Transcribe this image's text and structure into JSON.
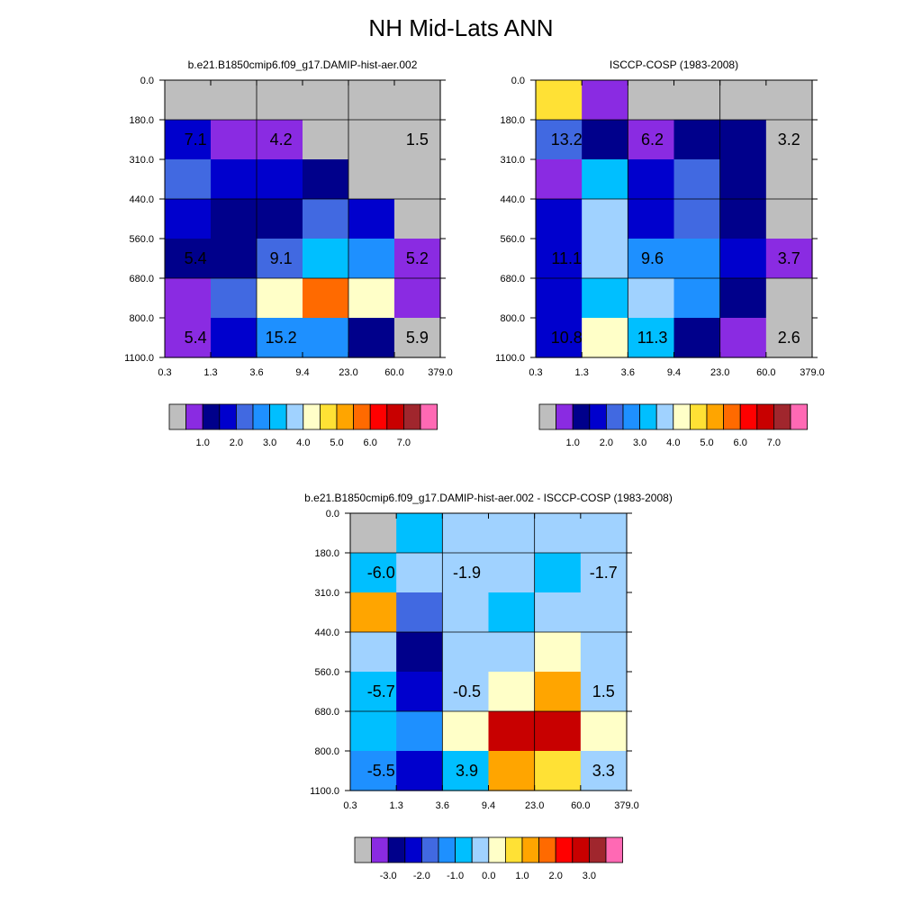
{
  "title": "NH Mid-Lats ANN",
  "chart_data": [
    {
      "type": "heatmap",
      "title": "b.e21.B1850cmip6.f09_g17.DAMIP-hist-aer.002",
      "x_ticks": [
        "0.3",
        "1.3",
        "3.6",
        "9.4",
        "23.0",
        "60.0",
        "379.0"
      ],
      "y_ticks": [
        "0.0",
        "180.0",
        "310.0",
        "440.0",
        "560.0",
        "680.0",
        "800.0",
        "1100.0"
      ],
      "cells": [
        [
          "#bebebe",
          "#bebebe",
          "#bebebe",
          "#bebebe",
          "#bebebe",
          "#bebebe"
        ],
        [
          "#0000cd",
          "#8a2be2",
          "#8a2be2",
          "#bebebe",
          "#bebebe",
          "#bebebe"
        ],
        [
          "#4169e1",
          "#0000cd",
          "#0000cd",
          "#00008b",
          "#bebebe",
          "#bebebe"
        ],
        [
          "#0000cd",
          "#00008b",
          "#00008b",
          "#4169e1",
          "#0000cd",
          "#bebebe"
        ],
        [
          "#00008b",
          "#00008b",
          "#4169e1",
          "#00bfff",
          "#1e90ff",
          "#8a2be2"
        ],
        [
          "#8a2be2",
          "#4169e1",
          "#ffffc8",
          "#ff6a00",
          "#ffffc8",
          "#8a2be2"
        ],
        [
          "#8a2be2",
          "#0000cd",
          "#1e90ff",
          "#1e90ff",
          "#00008b",
          "#bebebe"
        ]
      ],
      "labels": [
        {
          "text": "7.1",
          "x": 0.8,
          "y": 245
        },
        {
          "text": "4.2",
          "x": 6.0,
          "y": 245
        },
        {
          "text": "1.5",
          "x": 150,
          "y": 245
        },
        {
          "text": "5.4",
          "x": 0.8,
          "y": 620
        },
        {
          "text": "9.1",
          "x": 6.0,
          "y": 620
        },
        {
          "text": "5.2",
          "x": 150,
          "y": 620
        },
        {
          "text": "5.4",
          "x": 0.8,
          "y": 950
        },
        {
          "text": "15.2",
          "x": 6.0,
          "y": 950
        },
        {
          "text": "5.9",
          "x": 150,
          "y": 950
        }
      ],
      "colorbar": {
        "colors": [
          "#bebebe",
          "#8a2be2",
          "#00008b",
          "#0000cd",
          "#4169e1",
          "#1e90ff",
          "#00bfff",
          "#a0d2ff",
          "#ffffc8",
          "#ffe135",
          "#ffa500",
          "#ff6a00",
          "#ff0000",
          "#c80000",
          "#a0262d",
          "#ff69b4"
        ],
        "labels": [
          "1.0",
          "2.0",
          "3.0",
          "4.0",
          "5.0",
          "6.0",
          "7.0"
        ]
      }
    },
    {
      "type": "heatmap",
      "title": "ISCCP-COSP (1983-2008)",
      "x_ticks": [
        "0.3",
        "1.3",
        "3.6",
        "9.4",
        "23.0",
        "60.0",
        "379.0"
      ],
      "y_ticks": [
        "0.0",
        "180.0",
        "310.0",
        "440.0",
        "560.0",
        "680.0",
        "800.0",
        "1100.0"
      ],
      "cells": [
        [
          "#ffe135",
          "#8a2be2",
          "#bebebe",
          "#bebebe",
          "#bebebe",
          "#bebebe"
        ],
        [
          "#4169e1",
          "#00008b",
          "#8a2be2",
          "#00008b",
          "#00008b",
          "#bebebe"
        ],
        [
          "#8a2be2",
          "#00bfff",
          "#0000cd",
          "#4169e1",
          "#00008b",
          "#bebebe"
        ],
        [
          "#0000cd",
          "#a0d2ff",
          "#0000cd",
          "#4169e1",
          "#00008b",
          "#bebebe"
        ],
        [
          "#0000cd",
          "#a0d2ff",
          "#1e90ff",
          "#1e90ff",
          "#0000cd",
          "#8a2be2"
        ],
        [
          "#0000cd",
          "#00bfff",
          "#a0d2ff",
          "#1e90ff",
          "#00008b",
          "#bebebe"
        ],
        [
          "#0000cd",
          "#ffffc8",
          "#00bfff",
          "#00008b",
          "#8a2be2",
          "#bebebe"
        ]
      ],
      "labels": [
        {
          "text": "13.2",
          "x": 0.8,
          "y": 245
        },
        {
          "text": "6.2",
          "x": 6.0,
          "y": 245
        },
        {
          "text": "3.2",
          "x": 150,
          "y": 245
        },
        {
          "text": "11.1",
          "x": 0.8,
          "y": 620
        },
        {
          "text": "9.6",
          "x": 6.0,
          "y": 620
        },
        {
          "text": "3.7",
          "x": 150,
          "y": 620
        },
        {
          "text": "10.8",
          "x": 0.8,
          "y": 950
        },
        {
          "text": "11.3",
          "x": 6.0,
          "y": 950
        },
        {
          "text": "2.6",
          "x": 150,
          "y": 950
        }
      ],
      "colorbar": {
        "colors": [
          "#bebebe",
          "#8a2be2",
          "#00008b",
          "#0000cd",
          "#4169e1",
          "#1e90ff",
          "#00bfff",
          "#a0d2ff",
          "#ffffc8",
          "#ffe135",
          "#ffa500",
          "#ff6a00",
          "#ff0000",
          "#c80000",
          "#a0262d",
          "#ff69b4"
        ],
        "labels": [
          "1.0",
          "2.0",
          "3.0",
          "4.0",
          "5.0",
          "6.0",
          "7.0"
        ]
      }
    },
    {
      "type": "heatmap",
      "title": "b.e21.B1850cmip6.f09_g17.DAMIP-hist-aer.002 - ISCCP-COSP (1983-2008)",
      "x_ticks": [
        "0.3",
        "1.3",
        "3.6",
        "9.4",
        "23.0",
        "60.0",
        "379.0"
      ],
      "y_ticks": [
        "0.0",
        "180.0",
        "310.0",
        "440.0",
        "560.0",
        "680.0",
        "800.0",
        "1100.0"
      ],
      "cells": [
        [
          "#bebebe",
          "#00bfff",
          "#a0d2ff",
          "#a0d2ff",
          "#a0d2ff",
          "#a0d2ff"
        ],
        [
          "#00bfff",
          "#a0d2ff",
          "#a0d2ff",
          "#a0d2ff",
          "#00bfff",
          "#a0d2ff"
        ],
        [
          "#ffa500",
          "#4169e1",
          "#a0d2ff",
          "#00bfff",
          "#a0d2ff",
          "#a0d2ff"
        ],
        [
          "#a0d2ff",
          "#00008b",
          "#a0d2ff",
          "#a0d2ff",
          "#ffffc8",
          "#a0d2ff"
        ],
        [
          "#00bfff",
          "#0000cd",
          "#a0d2ff",
          "#ffffc8",
          "#ffa500",
          "#a0d2ff"
        ],
        [
          "#00bfff",
          "#1e90ff",
          "#ffffc8",
          "#c80000",
          "#c80000",
          "#ffffc8"
        ],
        [
          "#1e90ff",
          "#0000cd",
          "#00bfff",
          "#ffa500",
          "#ffe135",
          "#a0d2ff"
        ]
      ],
      "labels": [
        {
          "text": "-6.0",
          "x": 0.8,
          "y": 245
        },
        {
          "text": "-1.9",
          "x": 6.0,
          "y": 245
        },
        {
          "text": "-1.7",
          "x": 150,
          "y": 245
        },
        {
          "text": "-5.7",
          "x": 0.8,
          "y": 620
        },
        {
          "text": "-0.5",
          "x": 6.0,
          "y": 620
        },
        {
          "text": "1.5",
          "x": 150,
          "y": 620
        },
        {
          "text": "-5.5",
          "x": 0.8,
          "y": 950
        },
        {
          "text": "3.9",
          "x": 6.0,
          "y": 950
        },
        {
          "text": "3.3",
          "x": 150,
          "y": 950
        }
      ],
      "colorbar": {
        "colors": [
          "#bebebe",
          "#8a2be2",
          "#00008b",
          "#0000cd",
          "#4169e1",
          "#1e90ff",
          "#00bfff",
          "#a0d2ff",
          "#ffffc8",
          "#ffe135",
          "#ffa500",
          "#ff6a00",
          "#ff0000",
          "#c80000",
          "#a0262d",
          "#ff69b4"
        ],
        "labels": [
          "-3.0",
          "-2.0",
          "-1.0",
          "0.0",
          "1.0",
          "2.0",
          "3.0"
        ]
      }
    }
  ]
}
